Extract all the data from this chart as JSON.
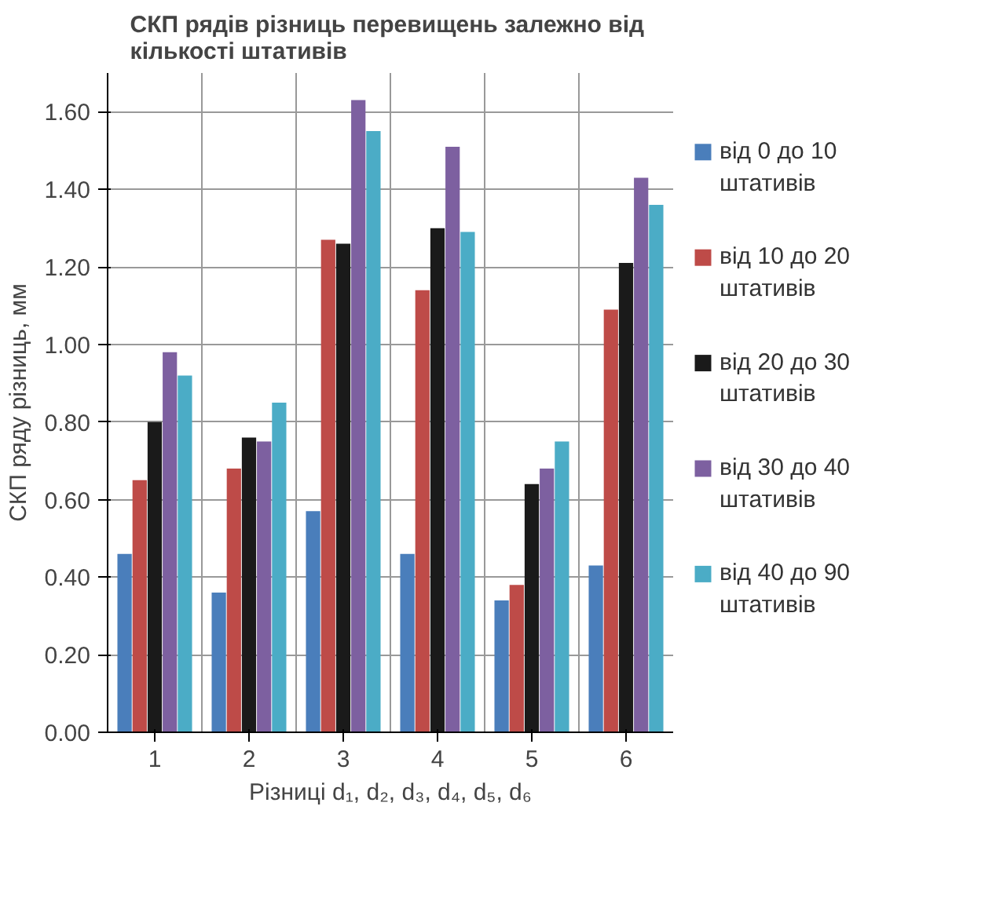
{
  "chart_data": {
    "type": "bar",
    "title": "СКП  рядів різниць перевищень залежно від кількості штативів",
    "xlabel": "Різниці d₁, d₂, d₃, d₄, d₅, d₆",
    "ylabel": "СКП ряду різниць, мм",
    "categories": [
      "1",
      "2",
      "3",
      "4",
      "5",
      "6"
    ],
    "series": [
      {
        "name": "від 0 до 10 штативів",
        "color": "#4a7ebb",
        "values": [
          0.46,
          0.36,
          0.57,
          0.46,
          0.34,
          0.43
        ]
      },
      {
        "name": "від 10 до 20 штативів",
        "color": "#be4b48",
        "values": [
          0.65,
          0.68,
          1.27,
          1.14,
          0.38,
          1.09
        ]
      },
      {
        "name": "від 20 до 30 штативів",
        "color": "#1a1a1a",
        "values": [
          0.8,
          0.76,
          1.26,
          1.3,
          0.64,
          1.21
        ]
      },
      {
        "name": "від 30 до 40 штативів",
        "color": "#7d60a0",
        "values": [
          0.98,
          0.75,
          1.63,
          1.51,
          0.68,
          1.43
        ]
      },
      {
        "name": "від 40 до 90 штативів",
        "color": "#4bacc6",
        "values": [
          0.92,
          0.85,
          1.55,
          1.29,
          0.75,
          1.36
        ]
      }
    ],
    "ylim": [
      0,
      1.7
    ],
    "yticks": [
      {
        "value": 0,
        "label": "0.00"
      },
      {
        "value": 0.2,
        "label": "0.20"
      },
      {
        "value": 0.4,
        "label": "0.40"
      },
      {
        "value": 0.6,
        "label": "0.60"
      },
      {
        "value": 0.8,
        "label": "0.80"
      },
      {
        "value": 1.0,
        "label": "1.00"
      },
      {
        "value": 1.2,
        "label": "1.20"
      },
      {
        "value": 1.4,
        "label": "1.40"
      },
      {
        "value": 1.6,
        "label": "1.60"
      }
    ],
    "grid": true,
    "legend": "right"
  }
}
